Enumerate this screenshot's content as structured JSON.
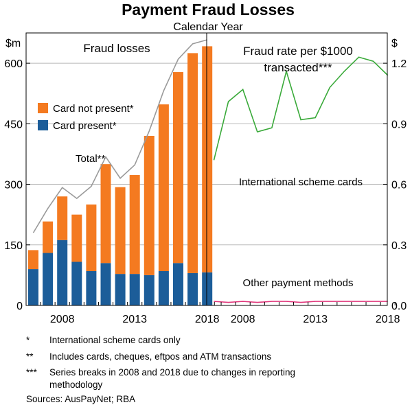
{
  "title": "Payment Fraud Losses",
  "subtitle": "Calendar Year",
  "left_unit": "$m",
  "right_unit": "$",
  "colors": {
    "card_not_present": "#f47a20",
    "card_present": "#1c5d99",
    "total": "#9a9a9a",
    "international": "#3aaa3a",
    "other": "#e0357a"
  },
  "footnotes": [
    {
      "mark": "*",
      "text": "International scheme cards only"
    },
    {
      "mark": "**",
      "text": "Includes cards, cheques, eftpos and ATM transactions"
    },
    {
      "mark": "***",
      "text": "Series breaks in 2008 and 2018 due to changes in reporting"
    },
    {
      "mark": "",
      "text": "methodology"
    }
  ],
  "sources": "Sources: AusPayNet; RBA",
  "chart_data": [
    {
      "type": "bar",
      "panel_title": "Fraud losses",
      "ylim": [
        0,
        675
      ],
      "yticks": [
        0,
        150,
        300,
        450,
        600
      ],
      "xticks": [
        "2008",
        "2013",
        "2018"
      ],
      "categories": [
        "2006",
        "2007",
        "2008",
        "2009",
        "2010",
        "2011",
        "2012",
        "2013",
        "2014",
        "2015",
        "2016",
        "2017",
        "2018"
      ],
      "stacked": true,
      "series": [
        {
          "name": "Card present*",
          "values": [
            90,
            130,
            162,
            108,
            85,
            105,
            78,
            78,
            75,
            85,
            105,
            80,
            82
          ]
        },
        {
          "name": "Card not present*",
          "values": [
            47,
            78,
            108,
            117,
            165,
            245,
            215,
            245,
            345,
            413,
            473,
            545,
            560
          ]
        }
      ],
      "line": {
        "name": "Total**",
        "values": [
          180,
          240,
          292,
          265,
          295,
          368,
          315,
          348,
          432,
          532,
          610,
          648,
          658
        ]
      },
      "legend": "upper-left"
    },
    {
      "type": "line",
      "panel_title_lines": [
        "Fraud rate per $1000",
        "transacted***"
      ],
      "ylim": [
        0,
        1.35
      ],
      "yticks": [
        "0.0",
        "0.3",
        "0.6",
        "0.9",
        "1.2"
      ],
      "xticks": [
        "2008",
        "2013",
        "2018"
      ],
      "x": [
        2006,
        2007,
        2008,
        2009,
        2010,
        2011,
        2012,
        2013,
        2014,
        2015,
        2016,
        2017,
        2018
      ],
      "series": [
        {
          "name": "International scheme cards",
          "values": [
            0.72,
            1.01,
            1.07,
            0.86,
            0.88,
            1.16,
            0.92,
            0.93,
            1.08,
            1.16,
            1.23,
            1.21,
            1.14
          ]
        },
        {
          "name": "Other payment methods",
          "values": [
            0.02,
            0.015,
            0.02,
            0.015,
            0.02,
            0.02,
            0.015,
            0.02,
            0.02,
            0.02,
            0.02,
            0.02,
            0.02
          ]
        }
      ]
    }
  ]
}
